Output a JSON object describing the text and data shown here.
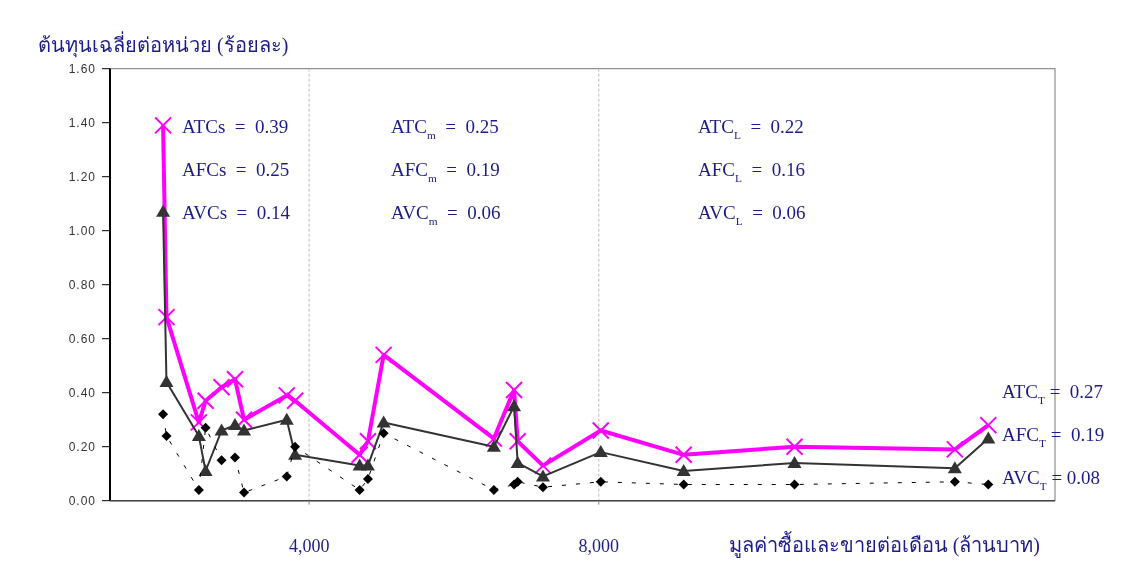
{
  "chart_data": {
    "type": "line",
    "ylabel": "ต้นทุนเฉลี่ยต่อหน่วย (ร้อยละ)",
    "xlabel": "มูลค่าซื้อและขายต่อเดือน (ล้านบาท)",
    "x": [
      1983,
      2030,
      2477,
      2570,
      2791,
      2976,
      3101,
      3691,
      3806,
      4697,
      4812,
      5029,
      6551,
      6830,
      6880,
      7229,
      8027,
      9172,
      10703,
      12917,
      13379
    ],
    "xlim": [
      1250,
      14300
    ],
    "xticks": [
      {
        "value": 4000,
        "label": "4,000"
      },
      {
        "value": 8000,
        "label": "8,000"
      }
    ],
    "ylim": [
      0,
      1.6
    ],
    "yticks": [
      {
        "value": 0,
        "label": "0.00"
      },
      {
        "value": 0.2,
        "label": "0.20"
      },
      {
        "value": 0.4,
        "label": "0.40"
      },
      {
        "value": 0.6,
        "label": "0.60"
      },
      {
        "value": 0.8,
        "label": "0.80"
      },
      {
        "value": 1,
        "label": "1.00"
      },
      {
        "value": 1.2,
        "label": "1.20"
      },
      {
        "value": 1.4,
        "label": "1.40"
      },
      {
        "value": 1.6,
        "label": "1.60"
      }
    ],
    "grid": "x",
    "series": [
      {
        "color": "#ff00ff",
        "marker": "cross",
        "line_style": "solid",
        "values": [
          1.39,
          0.68,
          0.29,
          0.37,
          0.42,
          0.45,
          0.3,
          0.39,
          0.37,
          0.17,
          0.22,
          0.54,
          0.23,
          0.41,
          0.22,
          0.13,
          0.26,
          0.17,
          0.2,
          0.19,
          0.28
        ]
      },
      {
        "color": "#333333",
        "marker": "triangle",
        "line_style": "solid",
        "values": [
          1.07,
          0.44,
          0.24,
          0.11,
          0.26,
          0.28,
          0.26,
          0.3,
          0.17,
          0.13,
          0.13,
          0.29,
          0.2,
          0.35,
          0.14,
          0.09,
          0.18,
          0.11,
          0.14,
          0.12,
          0.23
        ]
      },
      {
        "color": "#000000",
        "marker": "diamond",
        "line_style": "dashed",
        "values": [
          0.32,
          0.24,
          0.04,
          0.27,
          0.15,
          0.16,
          0.03,
          0.09,
          0.2,
          0.04,
          0.08,
          0.25,
          0.04,
          0.06,
          0.07,
          0.05,
          0.07,
          0.06,
          0.06,
          0.07,
          0.06
        ]
      }
    ],
    "annotations": [
      "ATCs  =  0.39",
      "AFCs  =  0.25",
      "AVCs  =  0.14",
      "ATC$_{m}$  =  0.25",
      "AFC$_{m}$  =  0.19",
      "AVC$_{m}$  =  0.06",
      "ATC$_{L}$  =  0.22",
      "AFC$_{L}$  =  0.16",
      "AVC$_{L}$  =  0.06",
      "ATC$_{T}$ =  0.27",
      "AFC$_{T}$ =  0.19",
      "AVC$_{T}$ = 0.08"
    ]
  }
}
